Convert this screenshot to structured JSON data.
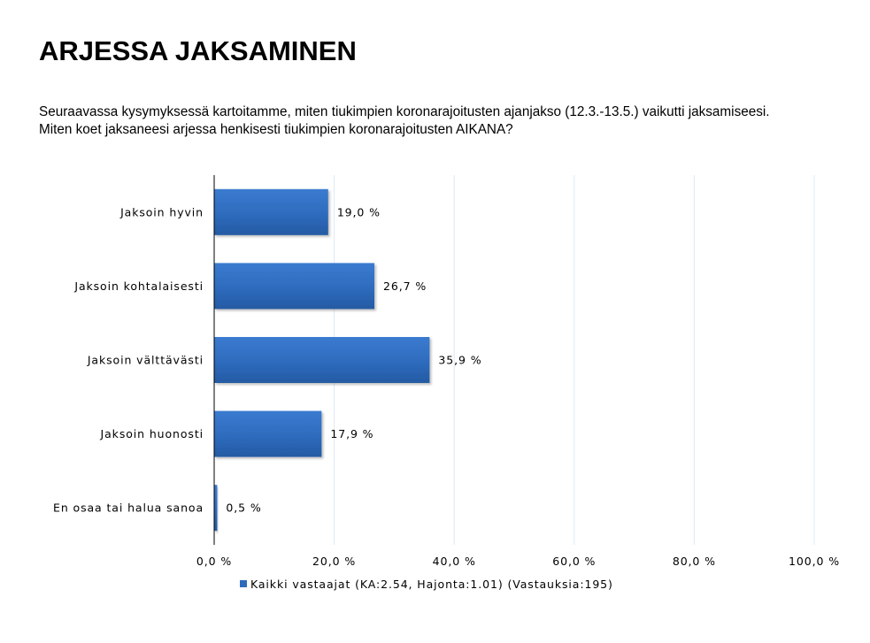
{
  "page": {
    "title": "ARJESSA JAKSAMINEN",
    "question": "Seuraavassa kysymyksessä kartoitamme, miten tiukimpien koronarajoitusten ajanjakso (12.3.-13.5.) vaikutti jaksamiseesi. Miten koet jaksaneesi arjessa henkisesti tiukimpien koronarajoitusten AIKANA?"
  },
  "chart_data": {
    "type": "bar",
    "orientation": "horizontal",
    "categories": [
      "Jaksoin hyvin",
      "Jaksoin kohtalaisesti",
      "Jaksoin välttävästi",
      "Jaksoin huonosti",
      "En osaa tai halua sanoa"
    ],
    "series": [
      {
        "name": "Kaikki vastaajat (KA:2.54, Hajonta:1.01) (Vastauksia:195)",
        "values": [
          19.0,
          26.7,
          35.9,
          17.9,
          0.5
        ],
        "data_labels": [
          "19,0 %",
          "26,7 %",
          "35,9 %",
          "17,9 %",
          "0,5 %"
        ]
      }
    ],
    "xlim": [
      0,
      100
    ],
    "x_ticks": [
      0,
      20,
      40,
      60,
      80,
      100
    ],
    "x_tick_labels": [
      "0,0 %",
      "20,0 %",
      "40,0 %",
      "60,0 %",
      "80,0 %",
      "100,0 %"
    ],
    "grid": "vertical",
    "legend_position": "bottom",
    "colors": {
      "bar": "#2e6bbd",
      "bar_dark": "#24589e",
      "gridline": "#dce9f5",
      "axis": "#000000"
    }
  }
}
